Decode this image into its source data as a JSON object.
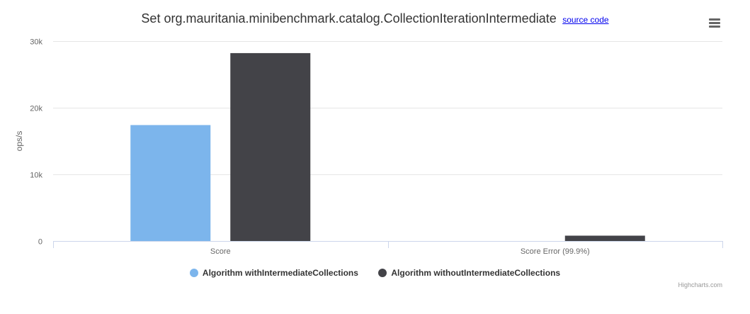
{
  "header": {
    "title": "Set org.mauritania.minibenchmark.catalog.CollectionIterationIntermediate",
    "source_link": "source code",
    "menu_icon": "hamburger-menu-icon"
  },
  "credits": "Highcharts.com",
  "chart_data": {
    "type": "bar",
    "categories": [
      "Score",
      "Score Error (99.9%)"
    ],
    "series": [
      {
        "name": "Algorithm withIntermediateCollections",
        "color": "#7cb5ec",
        "values": [
          17400,
          0
        ]
      },
      {
        "name": "Algorithm withoutIntermediateCollections",
        "color": "#434348",
        "values": [
          28200,
          800
        ]
      }
    ],
    "ylabel": "ops/s",
    "ylim": [
      0,
      30000
    ],
    "yticks": [
      {
        "value": 0,
        "label": "0"
      },
      {
        "value": 10000,
        "label": "10k"
      },
      {
        "value": 20000,
        "label": "20k"
      },
      {
        "value": 30000,
        "label": "30k"
      }
    ],
    "grid": true,
    "legend_position": "bottom-center"
  }
}
